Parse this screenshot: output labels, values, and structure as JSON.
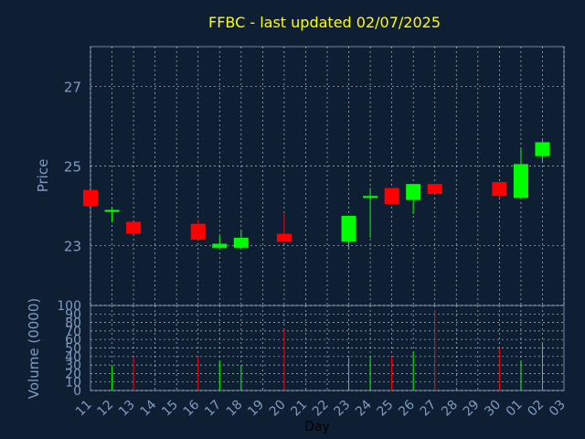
{
  "chart_data": [
    {
      "type": "candlestick",
      "title": "FFBC - last updated 02/07/2025",
      "ylabel": "Price",
      "ylim": [
        21.5,
        28
      ],
      "yticks": [
        23,
        25,
        27
      ],
      "grid": true,
      "x_tick_labels": [
        "11",
        "12",
        "13",
        "14",
        "15",
        "16",
        "17",
        "18",
        "19",
        "20",
        "21",
        "22",
        "23",
        "24",
        "25",
        "26",
        "27",
        "28",
        "29",
        "30",
        "01",
        "02",
        "03"
      ],
      "candles": [
        {
          "x": "11",
          "open": 24.4,
          "high": 24.4,
          "low": 24.0,
          "close": 24.0
        },
        {
          "x": "12",
          "open": 23.85,
          "high": 23.95,
          "low": 23.6,
          "close": 23.9
        },
        {
          "x": "13",
          "open": 23.6,
          "high": 23.6,
          "low": 23.3,
          "close": 23.3
        },
        {
          "x": "16",
          "open": 23.55,
          "high": 23.65,
          "low": 23.15,
          "close": 23.15
        },
        {
          "x": "17",
          "open": 22.95,
          "high": 23.25,
          "low": 22.95,
          "close": 23.05
        },
        {
          "x": "18",
          "open": 22.95,
          "high": 23.4,
          "low": 22.95,
          "close": 23.2
        },
        {
          "x": "20",
          "open": 23.3,
          "high": 23.8,
          "low": 23.1,
          "close": 23.1
        },
        {
          "x": "23",
          "open": 23.1,
          "high": 23.75,
          "low": 22.95,
          "close": 23.75
        },
        {
          "x": "24",
          "open": 24.2,
          "high": 24.45,
          "low": 23.2,
          "close": 24.25
        },
        {
          "x": "25",
          "open": 24.45,
          "high": 24.45,
          "low": 24.05,
          "close": 24.05
        },
        {
          "x": "26",
          "open": 24.15,
          "high": 24.55,
          "low": 23.8,
          "close": 24.55
        },
        {
          "x": "27",
          "open": 24.55,
          "high": 24.55,
          "low": 24.3,
          "close": 24.3
        },
        {
          "x": "30",
          "open": 24.6,
          "high": 24.6,
          "low": 24.2,
          "close": 24.25
        },
        {
          "x": "01",
          "open": 24.2,
          "high": 25.45,
          "low": 24.2,
          "close": 25.05
        },
        {
          "x": "02",
          "open": 25.25,
          "high": 25.65,
          "low": 25.1,
          "close": 25.6
        }
      ],
      "colors": {
        "up": "#00ff00",
        "down": "#ff0000",
        "title": "#ffff00",
        "axis_text": "#7f9bbf",
        "background": "#0f1f33",
        "frame": "#6f86a6"
      }
    },
    {
      "type": "bar",
      "ylabel": "Volume (0000)",
      "xlabel": "Day",
      "ylim": [
        0,
        100
      ],
      "yticks": [
        0,
        10,
        20,
        30,
        40,
        50,
        60,
        70,
        80,
        90,
        100
      ],
      "categories": [
        "12",
        "13",
        "16",
        "17",
        "18",
        "20",
        "23",
        "24",
        "25",
        "26",
        "27",
        "30",
        "01",
        "02"
      ],
      "values": [
        28,
        40,
        40,
        35,
        30,
        72,
        38,
        40,
        40,
        45,
        95,
        50,
        35,
        55
      ],
      "bar_colors": [
        "#00ff00",
        "#ff0000",
        "#ff0000",
        "#00ff00",
        "#00ff00",
        "#ff0000",
        "#00ff00",
        "#00ff00",
        "#ff0000",
        "#00ff00",
        "#ff0000",
        "#ff0000",
        "#00ff00",
        "#00ff00"
      ]
    }
  ]
}
